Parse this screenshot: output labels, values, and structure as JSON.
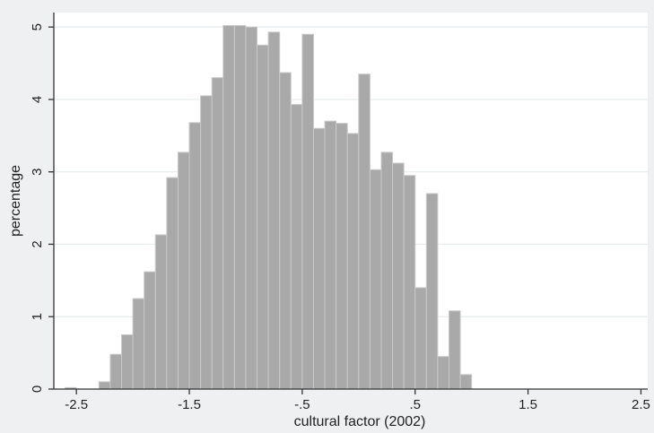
{
  "chart_data": {
    "type": "bar",
    "title": "",
    "xlabel": "cultural factor (2002)",
    "ylabel": "percentage",
    "xlim": [
      -2.7,
      2.56
    ],
    "ylim": [
      0,
      5.2
    ],
    "xticks": [
      -2.5,
      -1.5,
      -0.5,
      0.5,
      1.5,
      2.5
    ],
    "xtick_labels": [
      "-2.5",
      "-1.5",
      "-.5",
      ".5",
      "1.5",
      "2.5"
    ],
    "yticks": [
      0,
      1,
      2,
      3,
      4,
      5
    ],
    "ytick_labels": [
      "0",
      "1",
      "2",
      "3",
      "4",
      "5"
    ],
    "grid": "horizontal",
    "bin_width": 0.1,
    "bins": [
      {
        "x0": -2.6,
        "x1": -2.5,
        "value": 0.02
      },
      {
        "x0": -2.3,
        "x1": -2.2,
        "value": 0.1
      },
      {
        "x0": -2.2,
        "x1": -2.1,
        "value": 0.48
      },
      {
        "x0": -2.1,
        "x1": -2.0,
        "value": 0.75
      },
      {
        "x0": -2.0,
        "x1": -1.9,
        "value": 1.25
      },
      {
        "x0": -1.9,
        "x1": -1.8,
        "value": 1.62
      },
      {
        "x0": -1.8,
        "x1": -1.7,
        "value": 2.13
      },
      {
        "x0": -1.7,
        "x1": -1.6,
        "value": 2.92
      },
      {
        "x0": -1.6,
        "x1": -1.5,
        "value": 3.27
      },
      {
        "x0": -1.5,
        "x1": -1.4,
        "value": 3.68
      },
      {
        "x0": -1.4,
        "x1": -1.3,
        "value": 4.05
      },
      {
        "x0": -1.3,
        "x1": -1.2,
        "value": 4.3
      },
      {
        "x0": -1.2,
        "x1": -1.1,
        "value": 5.02
      },
      {
        "x0": -1.1,
        "x1": -1.0,
        "value": 5.02
      },
      {
        "x0": -1.0,
        "x1": -0.9,
        "value": 5.0
      },
      {
        "x0": -0.9,
        "x1": -0.8,
        "value": 4.75
      },
      {
        "x0": -0.8,
        "x1": -0.7,
        "value": 4.93
      },
      {
        "x0": -0.7,
        "x1": -0.6,
        "value": 4.37
      },
      {
        "x0": -0.6,
        "x1": -0.5,
        "value": 3.93
      },
      {
        "x0": -0.5,
        "x1": -0.4,
        "value": 4.9
      },
      {
        "x0": -0.4,
        "x1": -0.3,
        "value": 3.6
      },
      {
        "x0": -0.3,
        "x1": -0.2,
        "value": 3.7
      },
      {
        "x0": -0.2,
        "x1": -0.1,
        "value": 3.67
      },
      {
        "x0": -0.1,
        "x1": 0.0,
        "value": 3.53
      },
      {
        "x0": 0.0,
        "x1": 0.1,
        "value": 4.35
      },
      {
        "x0": 0.1,
        "x1": 0.2,
        "value": 3.03
      },
      {
        "x0": 0.2,
        "x1": 0.3,
        "value": 3.27
      },
      {
        "x0": 0.3,
        "x1": 0.4,
        "value": 3.12
      },
      {
        "x0": 0.4,
        "x1": 0.5,
        "value": 2.95
      },
      {
        "x0": 0.5,
        "x1": 0.6,
        "value": 1.4
      },
      {
        "x0": 0.6,
        "x1": 0.7,
        "value": 2.7
      },
      {
        "x0": 0.7,
        "x1": 0.8,
        "value": 0.45
      },
      {
        "x0": 0.8,
        "x1": 0.9,
        "value": 1.08
      },
      {
        "x0": 0.9,
        "x1": 1.0,
        "value": 0.2
      }
    ]
  },
  "colors": {
    "bar_fill": "#a9a9a9",
    "bar_edge": "#c9c9c9",
    "plot_bg": "#ffffff",
    "outer_bg": "#eef0f1",
    "grid": "#e6ebee",
    "axis": "#333333",
    "text": "#222222"
  }
}
